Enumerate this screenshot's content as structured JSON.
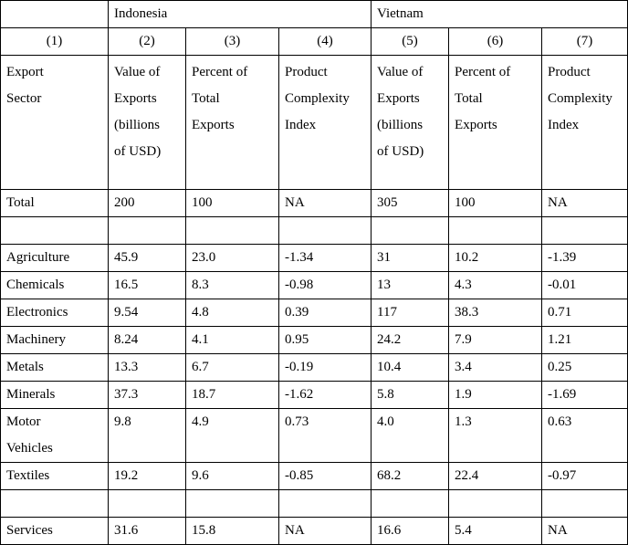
{
  "table": {
    "group_headers": [
      "Indonesia",
      "Vietnam"
    ],
    "column_numbers": [
      "(1)",
      "(2)",
      "(3)",
      "(4)",
      "(5)",
      "(6)",
      "(7)"
    ],
    "column_headers": [
      [
        "Export",
        "Sector"
      ],
      [
        "Value of",
        "Exports",
        "(billions",
        "of  USD)"
      ],
      [
        "Percent of",
        "Total",
        "Exports"
      ],
      [
        "Product",
        "Complexity",
        "Index"
      ],
      [
        "Value of",
        "Exports",
        "(billions",
        "of  USD)"
      ],
      [
        "Percent of",
        "Total",
        "Exports"
      ],
      [
        "Product",
        "Complexity",
        "Index"
      ]
    ],
    "total_row": [
      "Total",
      "200",
      "100",
      "NA",
      "305",
      "100",
      "NA"
    ],
    "sector_rows": [
      [
        "Agriculture",
        "45.9",
        "23.0",
        "-1.34",
        "31",
        "10.2",
        "-1.39"
      ],
      [
        "Chemicals",
        "16.5",
        "8.3",
        "-0.98",
        "13",
        "4.3",
        "-0.01"
      ],
      [
        "Electronics",
        "9.54",
        "4.8",
        "0.39",
        "117",
        "38.3",
        "0.71"
      ],
      [
        "Machinery",
        "8.24",
        "4.1",
        "0.95",
        "24.2",
        "7.9",
        "1.21"
      ],
      [
        "Metals",
        "13.3",
        "6.7",
        "-0.19",
        "10.4",
        "3.4",
        "0.25"
      ],
      [
        "Minerals",
        "37.3",
        "18.7",
        "-1.62",
        "5.8",
        "1.9",
        "-1.69"
      ],
      [
        "Motor Vehicles",
        "9.8",
        "4.9",
        "0.73",
        "4.0",
        "1.3",
        "0.63"
      ],
      [
        "Textiles",
        "19.2",
        "9.6",
        "-0.85",
        "68.2",
        "22.4",
        "-0.97"
      ]
    ],
    "services_row": [
      "Services",
      "31.6",
      "15.8",
      "NA",
      "16.6",
      "5.4",
      "NA"
    ]
  }
}
